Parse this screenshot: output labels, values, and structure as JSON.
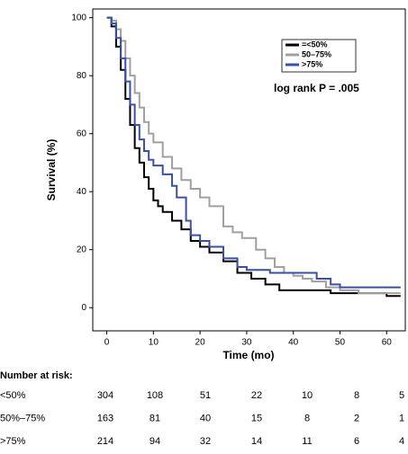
{
  "chart_data": {
    "type": "step",
    "y_label": "Survival (%)",
    "x_label": "Time (mo)",
    "annotation": "log rank P = .005",
    "xlim": [
      -3,
      64
    ],
    "xticks": [
      0,
      10,
      20,
      30,
      40,
      50,
      60
    ],
    "ylim": [
      -8,
      103
    ],
    "yticks": [
      0,
      20,
      40,
      60,
      80,
      100
    ],
    "series": [
      {
        "name": "=<50%",
        "color": "#000000",
        "x": [
          0,
          1,
          2,
          3,
          4,
          5,
          6,
          7,
          8,
          9,
          10,
          11,
          12,
          14,
          16,
          18,
          20,
          22,
          25,
          28,
          31,
          34,
          37,
          45,
          48,
          52,
          60,
          63
        ],
        "values": [
          100,
          97,
          90,
          82,
          72,
          63,
          55,
          50,
          45,
          41,
          37,
          35,
          33,
          30,
          27,
          23,
          21,
          19,
          16,
          12,
          10,
          8,
          6,
          6,
          5,
          5,
          4,
          4
        ]
      },
      {
        "name": "50–75%",
        "color": "#a0a0a0",
        "x": [
          0,
          1,
          2,
          3,
          4,
          5,
          6,
          7,
          8,
          9,
          10,
          12,
          14,
          16,
          18,
          20,
          22,
          25,
          27,
          29,
          32,
          34,
          36,
          38,
          40,
          42,
          44,
          47,
          50,
          54,
          63
        ],
        "values": [
          100,
          99,
          96,
          92,
          86,
          80,
          74,
          69,
          64,
          60,
          57,
          52,
          48,
          44,
          41,
          38,
          35,
          28,
          26,
          24,
          20,
          17,
          14,
          12,
          11,
          10,
          9,
          7,
          6,
          5,
          5
        ]
      },
      {
        "name": ">75%",
        "color": "#3a4fa8",
        "x": [
          0,
          1,
          2,
          3,
          4,
          5,
          6,
          7,
          8,
          9,
          10,
          12,
          14,
          15,
          17,
          18,
          20,
          22,
          25,
          28,
          30,
          35,
          40,
          43,
          45,
          48,
          50,
          63
        ],
        "values": [
          100,
          98,
          93,
          86,
          78,
          70,
          63,
          58,
          54,
          51,
          49,
          46,
          42,
          38,
          30,
          25,
          23,
          21,
          17,
          14,
          13,
          12,
          12,
          12,
          10,
          8,
          7,
          7
        ]
      }
    ]
  },
  "risk_table": {
    "title": "Number at risk:",
    "rows": [
      {
        "label": "<50%",
        "values": [
          304,
          108,
          51,
          22,
          10,
          8,
          5
        ]
      },
      {
        "label": "50%–75%",
        "values": [
          163,
          81,
          40,
          15,
          8,
          2,
          1
        ]
      },
      {
        "label": ">75%",
        "values": [
          214,
          94,
          32,
          14,
          11,
          6,
          4
        ]
      }
    ]
  }
}
